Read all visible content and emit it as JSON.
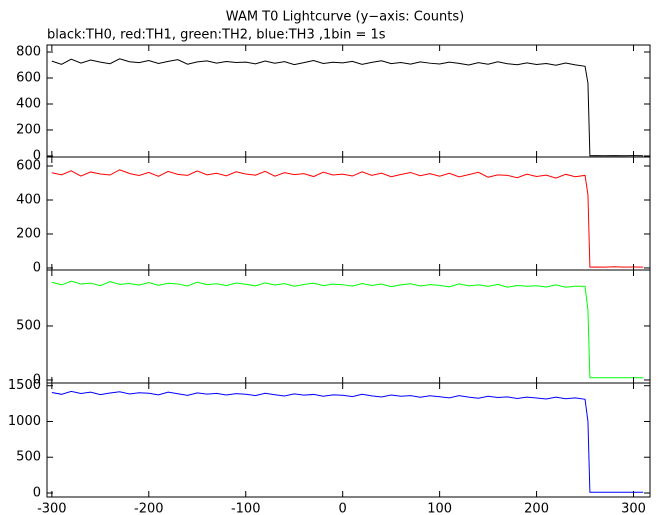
{
  "chart_data": [
    {
      "type": "line",
      "title": "WAM T0 Lightcurve (y−axis: Counts)",
      "subtitle": "black:TH0, red:TH1, green:TH2, blue:TH3 ,1bin = 1s",
      "x": [
        -300,
        -290,
        -280,
        -270,
        -260,
        -250,
        -240,
        -230,
        -220,
        -210,
        -200,
        -190,
        -180,
        -170,
        -160,
        -150,
        -140,
        -130,
        -120,
        -110,
        -100,
        -90,
        -80,
        -70,
        -60,
        -50,
        -40,
        -30,
        -20,
        -10,
        0,
        10,
        20,
        30,
        40,
        50,
        60,
        70,
        80,
        90,
        100,
        110,
        120,
        130,
        140,
        150,
        160,
        170,
        180,
        190,
        200,
        210,
        220,
        230,
        240,
        250,
        253,
        255,
        260,
        270,
        280,
        290,
        300,
        310
      ],
      "series": [
        {
          "name": "TH0",
          "color": "#000000",
          "values": [
            730,
            705,
            745,
            715,
            738,
            722,
            710,
            748,
            725,
            718,
            735,
            712,
            728,
            741,
            706,
            724,
            732,
            715,
            727,
            719,
            722,
            709,
            731,
            714,
            726,
            703,
            718,
            735,
            712,
            721,
            716,
            728,
            705,
            720,
            733,
            711,
            719,
            707,
            724,
            714,
            708,
            722,
            713,
            700,
            718,
            706,
            725,
            710,
            702,
            716,
            704,
            712,
            698,
            715,
            701,
            690,
            560,
            2,
            3,
            2,
            3,
            2,
            3,
            2
          ]
        }
      ],
      "xlim": [
        -305,
        317
      ],
      "ylim": [
        -8,
        854
      ],
      "yticks": [
        0,
        200,
        400,
        600,
        800
      ]
    },
    {
      "type": "line",
      "x": [
        -300,
        -290,
        -280,
        -270,
        -260,
        -250,
        -240,
        -230,
        -220,
        -210,
        -200,
        -190,
        -180,
        -170,
        -160,
        -150,
        -140,
        -130,
        -120,
        -110,
        -100,
        -90,
        -80,
        -70,
        -60,
        -50,
        -40,
        -30,
        -20,
        -10,
        0,
        10,
        20,
        30,
        40,
        50,
        60,
        70,
        80,
        90,
        100,
        110,
        120,
        130,
        140,
        150,
        160,
        170,
        180,
        190,
        200,
        210,
        220,
        230,
        240,
        250,
        253,
        255,
        260,
        270,
        280,
        290,
        300,
        310
      ],
      "series": [
        {
          "name": "TH1",
          "color": "#ff0000",
          "values": [
            560,
            548,
            572,
            541,
            565,
            553,
            547,
            578,
            556,
            544,
            562,
            539,
            568,
            551,
            545,
            571,
            548,
            557,
            542,
            566,
            553,
            546,
            569,
            540,
            561,
            549,
            555,
            538,
            564,
            547,
            552,
            541,
            566,
            545,
            558,
            537,
            550,
            562,
            543,
            555,
            540,
            557,
            536,
            549,
            563,
            534,
            548,
            545,
            531,
            552,
            538,
            546,
            529,
            551,
            537,
            545,
            430,
            5,
            6,
            5,
            7,
            5,
            6,
            5
          ]
        }
      ],
      "xlim": [
        -305,
        317
      ],
      "ylim": [
        -12,
        653
      ],
      "yticks": [
        0,
        200,
        400,
        600
      ]
    },
    {
      "type": "line",
      "x": [
        -300,
        -290,
        -280,
        -270,
        -260,
        -250,
        -240,
        -230,
        -220,
        -210,
        -200,
        -190,
        -180,
        -170,
        -160,
        -150,
        -140,
        -130,
        -120,
        -110,
        -100,
        -90,
        -80,
        -70,
        -60,
        -50,
        -40,
        -30,
        -20,
        -10,
        0,
        10,
        20,
        30,
        40,
        50,
        60,
        70,
        80,
        90,
        100,
        110,
        120,
        130,
        140,
        150,
        160,
        170,
        180,
        190,
        200,
        210,
        220,
        230,
        240,
        250,
        253,
        255,
        260,
        270,
        280,
        290,
        300,
        310
      ],
      "series": [
        {
          "name": "TH2",
          "color": "#00ff00",
          "values": [
            905,
            880,
            915,
            888,
            897,
            872,
            910,
            885,
            893,
            878,
            902,
            876,
            895,
            889,
            870,
            906,
            883,
            891,
            874,
            898,
            886,
            871,
            899,
            879,
            892,
            868,
            884,
            896,
            873,
            887,
            882,
            869,
            893,
            875,
            888,
            864,
            880,
            891,
            870,
            883,
            876,
            862,
            889,
            871,
            880,
            866,
            885,
            859,
            874,
            868,
            872,
            861,
            880,
            858,
            869,
            866,
            650,
            20,
            20,
            20,
            20,
            20,
            20,
            20
          ]
        }
      ],
      "xlim": [
        -305,
        317
      ],
      "ylim": [
        -28,
        1018
      ],
      "yticks": [
        0,
        500
      ]
    },
    {
      "type": "line",
      "x": [
        -300,
        -290,
        -280,
        -270,
        -260,
        -250,
        -240,
        -230,
        -220,
        -210,
        -200,
        -190,
        -180,
        -170,
        -160,
        -150,
        -140,
        -130,
        -120,
        -110,
        -100,
        -90,
        -80,
        -70,
        -60,
        -50,
        -40,
        -30,
        -20,
        -10,
        0,
        10,
        20,
        30,
        40,
        50,
        60,
        70,
        80,
        90,
        100,
        110,
        120,
        130,
        140,
        150,
        160,
        170,
        180,
        190,
        200,
        210,
        220,
        230,
        240,
        250,
        253,
        255,
        260,
        270,
        280,
        290,
        300,
        310
      ],
      "series": [
        {
          "name": "TH3",
          "color": "#0000ff",
          "values": [
            1405,
            1380,
            1420,
            1392,
            1410,
            1375,
            1398,
            1415,
            1385,
            1402,
            1395,
            1372,
            1410,
            1388,
            1365,
            1400,
            1382,
            1393,
            1370,
            1390,
            1380,
            1362,
            1395,
            1374,
            1356,
            1385,
            1368,
            1378,
            1352,
            1372,
            1366,
            1348,
            1380,
            1358,
            1342,
            1370,
            1352,
            1362,
            1338,
            1360,
            1345,
            1330,
            1362,
            1340,
            1325,
            1352,
            1335,
            1344,
            1322,
            1340,
            1328,
            1315,
            1340,
            1318,
            1330,
            1310,
            1000,
            10,
            10,
            10,
            10,
            10,
            10,
            10
          ]
        }
      ],
      "xlim": [
        -305,
        317
      ],
      "ylim": [
        -56,
        1538
      ],
      "yticks": [
        0,
        500,
        1000,
        1500
      ],
      "xticks": [
        -300,
        -200,
        -100,
        0,
        100,
        200,
        300
      ]
    }
  ]
}
